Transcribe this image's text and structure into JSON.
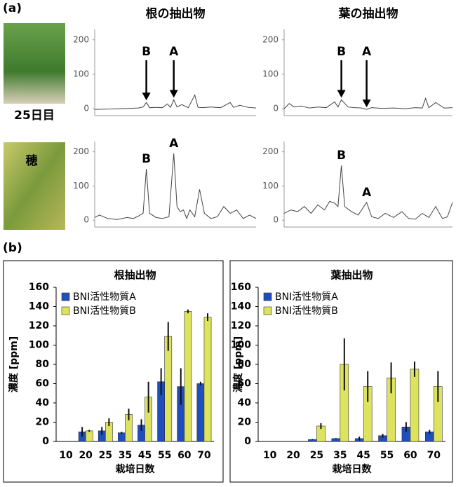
{
  "panel_labels": [
    "(a)",
    "(b)"
  ],
  "photo_labels": [
    "25日目",
    "穂"
  ],
  "chart_data": [
    {
      "type": "line",
      "title": "根の抽出物",
      "color": "#444444",
      "ylim": [
        -20,
        230
      ],
      "yticks": [
        0,
        100,
        200
      ],
      "xlim": [
        0,
        100
      ],
      "x": [
        0,
        8,
        16,
        22,
        27,
        30,
        32,
        34,
        38,
        42,
        45,
        47,
        49,
        51,
        54,
        58,
        62,
        64,
        67,
        72,
        78,
        84,
        86,
        90,
        95,
        100
      ],
      "values": [
        -2,
        -1,
        0,
        1,
        2,
        5,
        18,
        3,
        4,
        3,
        14,
        4,
        26,
        5,
        12,
        3,
        40,
        4,
        3,
        5,
        3,
        18,
        4,
        10,
        4,
        2
      ],
      "annotations": [
        {
          "text": "B",
          "x": 32
        },
        {
          "text": "A",
          "x": 49
        }
      ],
      "arrows": true
    },
    {
      "type": "line",
      "title": "葉の抽出物",
      "color": "#444444",
      "ylim": [
        -20,
        230
      ],
      "yticks": [
        0,
        100,
        200
      ],
      "xlim": [
        0,
        100
      ],
      "x": [
        0,
        3,
        6,
        10,
        15,
        20,
        25,
        30,
        32,
        34,
        38,
        42,
        46,
        49,
        52,
        58,
        65,
        72,
        78,
        82,
        84,
        86,
        90,
        95,
        100
      ],
      "values": [
        0,
        15,
        5,
        8,
        2,
        5,
        3,
        20,
        5,
        26,
        5,
        3,
        2,
        -2,
        3,
        1,
        2,
        0,
        3,
        2,
        30,
        3,
        18,
        2,
        3
      ],
      "annotations": [
        {
          "text": "B",
          "x": 34
        },
        {
          "text": "A",
          "x": 49
        }
      ],
      "arrows": true
    },
    {
      "type": "line",
      "color": "#444444",
      "ylim": [
        -20,
        230
      ],
      "yticks": [
        0,
        100,
        200
      ],
      "xlim": [
        0,
        100
      ],
      "x": [
        0,
        3,
        8,
        14,
        20,
        24,
        27,
        30,
        32,
        34,
        38,
        42,
        46,
        49,
        51,
        53,
        55,
        57,
        59,
        62,
        65,
        68,
        72,
        76,
        80,
        84,
        88,
        92,
        96,
        100
      ],
      "values": [
        8,
        15,
        5,
        2,
        8,
        5,
        12,
        20,
        150,
        20,
        8,
        5,
        10,
        195,
        40,
        25,
        30,
        5,
        30,
        10,
        90,
        20,
        5,
        10,
        40,
        20,
        30,
        5,
        15,
        5
      ],
      "annotations": [
        {
          "text": "B",
          "x": 32
        },
        {
          "text": "A",
          "x": 49
        }
      ],
      "arrows": false
    },
    {
      "type": "line",
      "color": "#444444",
      "ylim": [
        -20,
        230
      ],
      "yticks": [
        0,
        100,
        200
      ],
      "xlim": [
        0,
        100
      ],
      "x": [
        0,
        4,
        8,
        12,
        16,
        20,
        24,
        27,
        30,
        32,
        34,
        36,
        40,
        44,
        49,
        52,
        56,
        60,
        65,
        70,
        74,
        78,
        82,
        86,
        90,
        94,
        97,
        100
      ],
      "values": [
        20,
        30,
        25,
        40,
        20,
        45,
        30,
        55,
        50,
        40,
        160,
        40,
        25,
        15,
        52,
        10,
        5,
        20,
        8,
        25,
        5,
        3,
        20,
        8,
        40,
        5,
        10,
        52
      ],
      "annotations": [
        {
          "text": "B",
          "x": 34
        },
        {
          "text": "A",
          "x": 49
        }
      ],
      "arrows": false
    },
    {
      "type": "bar",
      "title": "根抽出物",
      "xlabel": "栽培日数",
      "ylabel": "濃度 [ppm]",
      "legend": "upper left",
      "categories": [
        "10",
        "20",
        "25",
        "35",
        "45",
        "55",
        "60",
        "70"
      ],
      "ylim": [
        0,
        160
      ],
      "yticks": [
        0,
        20,
        40,
        60,
        80,
        100,
        120,
        140,
        160
      ],
      "series": [
        {
          "name": "BNI活性物質A",
          "color": "#1f4fbf",
          "values": [
            0,
            10,
            11,
            9,
            17,
            62,
            57,
            60
          ],
          "errors": [
            0,
            5,
            4,
            1,
            6,
            14,
            19,
            2
          ]
        },
        {
          "name": "BNI活性物質B",
          "color": "#dde35e",
          "values": [
            0,
            11,
            20,
            28,
            46,
            109,
            135,
            129
          ],
          "errors": [
            0,
            1,
            4,
            6,
            16,
            15,
            2,
            4
          ]
        }
      ]
    },
    {
      "type": "bar",
      "title": "葉抽出物",
      "xlabel": "栽培日数",
      "ylabel": "濃度 [ppm]",
      "legend": "upper left",
      "categories": [
        "10",
        "20",
        "25",
        "35",
        "45",
        "55",
        "60",
        "70"
      ],
      "ylim": [
        0,
        160
      ],
      "yticks": [
        0,
        20,
        40,
        60,
        80,
        100,
        120,
        140,
        160
      ],
      "series": [
        {
          "name": "BNI活性物質A",
          "color": "#1f4fbf",
          "values": [
            0,
            0,
            2,
            3,
            3,
            6,
            15,
            10
          ],
          "errors": [
            0,
            0,
            0.5,
            0.5,
            2,
            2,
            5,
            2
          ]
        },
        {
          "name": "BNI活性物質B",
          "color": "#dde35e",
          "values": [
            0,
            0,
            16,
            80,
            57,
            66,
            75,
            57
          ],
          "errors": [
            0,
            0,
            3,
            27,
            16,
            16,
            8,
            16
          ]
        }
      ]
    }
  ]
}
